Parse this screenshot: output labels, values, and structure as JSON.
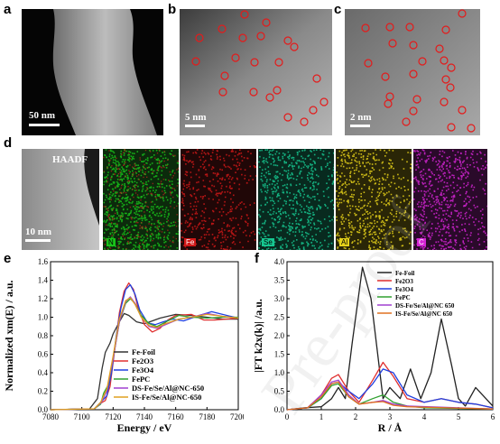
{
  "figure": {
    "panels": {
      "a": {
        "letter": "a",
        "scale": "50 nm"
      },
      "b": {
        "letter": "b",
        "scale": "5 nm"
      },
      "c": {
        "letter": "c",
        "scale": "2 nm"
      },
      "d": {
        "letter": "d",
        "haadf": "HAADF",
        "scale": "10 nm",
        "maps": [
          {
            "label": "N",
            "color": "#19c21a",
            "bg": "#0c2a0c"
          },
          {
            "label": "Fe",
            "color": "#d01818",
            "bg": "#200707"
          },
          {
            "label": "Se",
            "color": "#16c790",
            "bg": "#082a1f"
          },
          {
            "label": "Al",
            "color": "#e6d21a",
            "bg": "#2a2607"
          },
          {
            "label": "C",
            "color": "#d424d4",
            "bg": "#2a0a2a"
          }
        ]
      },
      "e": {
        "letter": "e"
      },
      "f": {
        "letter": "f"
      }
    },
    "watermark": "Pre-proof"
  },
  "chart_data": [
    {
      "type": "line",
      "panel": "e",
      "xlabel": "Energy / eV",
      "ylabel": "Normalized xm(E) / a.u.",
      "xlim": [
        7080,
        7200
      ],
      "ylim": [
        0.0,
        1.6
      ],
      "xticks": [
        7080,
        7100,
        7120,
        7140,
        7160,
        7180,
        7200
      ],
      "yticks": [
        0.0,
        0.2,
        0.4,
        0.6,
        0.8,
        1.0,
        1.2,
        1.4,
        1.6
      ],
      "legend_position": "bottom-right",
      "series": [
        {
          "name": "Fe-Foil",
          "color": "#333333",
          "points": [
            [
              7080,
              0.0
            ],
            [
              7105,
              0.01
            ],
            [
              7110,
              0.12
            ],
            [
              7113,
              0.45
            ],
            [
              7115,
              0.62
            ],
            [
              7118,
              0.72
            ],
            [
              7120,
              0.82
            ],
            [
              7124,
              0.95
            ],
            [
              7127,
              1.04
            ],
            [
              7130,
              1.02
            ],
            [
              7135,
              0.95
            ],
            [
              7140,
              0.93
            ],
            [
              7145,
              0.96
            ],
            [
              7150,
              0.99
            ],
            [
              7160,
              1.03
            ],
            [
              7170,
              1.02
            ],
            [
              7180,
              1.0
            ],
            [
              7190,
              0.98
            ],
            [
              7200,
              0.98
            ]
          ]
        },
        {
          "name": "Fe2O3",
          "color": "#e03030",
          "points": [
            [
              7080,
              0.0
            ],
            [
              7108,
              0.01
            ],
            [
              7112,
              0.07
            ],
            [
              7115,
              0.1
            ],
            [
              7118,
              0.25
            ],
            [
              7121,
              0.65
            ],
            [
              7124,
              1.05
            ],
            [
              7127,
              1.28
            ],
            [
              7130,
              1.37
            ],
            [
              7133,
              1.3
            ],
            [
              7136,
              1.1
            ],
            [
              7140,
              0.92
            ],
            [
              7145,
              0.84
            ],
            [
              7150,
              0.88
            ],
            [
              7155,
              0.97
            ],
            [
              7160,
              1.02
            ],
            [
              7170,
              1.03
            ],
            [
              7178,
              0.97
            ],
            [
              7185,
              0.97
            ],
            [
              7200,
              0.99
            ]
          ]
        },
        {
          "name": "Fe3O4",
          "color": "#2040e0",
          "points": [
            [
              7080,
              0.0
            ],
            [
              7108,
              0.01
            ],
            [
              7112,
              0.08
            ],
            [
              7116,
              0.15
            ],
            [
              7119,
              0.4
            ],
            [
              7122,
              0.8
            ],
            [
              7125,
              1.1
            ],
            [
              7128,
              1.3
            ],
            [
              7131,
              1.35
            ],
            [
              7134,
              1.25
            ],
            [
              7137,
              1.08
            ],
            [
              7142,
              0.94
            ],
            [
              7147,
              0.92
            ],
            [
              7152,
              0.95
            ],
            [
              7158,
              0.98
            ],
            [
              7165,
              0.96
            ],
            [
              7175,
              1.02
            ],
            [
              7183,
              1.06
            ],
            [
              7190,
              1.03
            ],
            [
              7200,
              0.99
            ]
          ]
        },
        {
          "name": "FePC",
          "color": "#30a030",
          "points": [
            [
              7080,
              0.0
            ],
            [
              7108,
              0.01
            ],
            [
              7112,
              0.06
            ],
            [
              7114,
              0.18
            ],
            [
              7117,
              0.27
            ],
            [
              7120,
              0.55
            ],
            [
              7124,
              0.95
            ],
            [
              7128,
              1.15
            ],
            [
              7131,
              1.2
            ],
            [
              7134,
              1.15
            ],
            [
              7138,
              1.02
            ],
            [
              7143,
              0.93
            ],
            [
              7148,
              0.9
            ],
            [
              7155,
              0.96
            ],
            [
              7162,
              1.02
            ],
            [
              7170,
              1.0
            ],
            [
              7180,
              0.99
            ],
            [
              7190,
              1.0
            ],
            [
              7200,
              1.0
            ]
          ]
        },
        {
          "name": "DS-Fe/Se/Al@NC-650",
          "color": "#a040d0",
          "points": [
            [
              7080,
              0.0
            ],
            [
              7108,
              0.01
            ],
            [
              7112,
              0.07
            ],
            [
              7116,
              0.2
            ],
            [
              7120,
              0.55
            ],
            [
              7124,
              0.95
            ],
            [
              7128,
              1.17
            ],
            [
              7131,
              1.22
            ],
            [
              7134,
              1.15
            ],
            [
              7138,
              1.0
            ],
            [
              7143,
              0.9
            ],
            [
              7148,
              0.88
            ],
            [
              7155,
              0.93
            ],
            [
              7162,
              0.98
            ],
            [
              7170,
              1.0
            ],
            [
              7180,
              1.04
            ],
            [
              7190,
              1.01
            ],
            [
              7200,
              0.99
            ]
          ]
        },
        {
          "name": "IS-Fe/Se/Al@NC-650",
          "color": "#e0a020",
          "points": [
            [
              7080,
              0.0
            ],
            [
              7108,
              0.01
            ],
            [
              7112,
              0.08
            ],
            [
              7116,
              0.22
            ],
            [
              7120,
              0.58
            ],
            [
              7124,
              0.98
            ],
            [
              7128,
              1.18
            ],
            [
              7131,
              1.21
            ],
            [
              7134,
              1.14
            ],
            [
              7138,
              1.0
            ],
            [
              7143,
              0.91
            ],
            [
              7148,
              0.89
            ],
            [
              7155,
              0.94
            ],
            [
              7162,
              0.98
            ],
            [
              7170,
              1.0
            ],
            [
              7180,
              1.03
            ],
            [
              7190,
              1.01
            ],
            [
              7200,
              0.99
            ]
          ]
        }
      ]
    },
    {
      "type": "line",
      "panel": "f",
      "xlabel": "R / Å",
      "ylabel": "|FT k2x(k)| /a.u.",
      "xlim": [
        0,
        6
      ],
      "ylim": [
        0.0,
        4.0
      ],
      "xticks": [
        0,
        1,
        2,
        3,
        4,
        5,
        6
      ],
      "yticks": [
        0.0,
        0.5,
        1.0,
        1.5,
        2.0,
        2.5,
        3.0,
        3.5,
        4.0
      ],
      "legend_position": "top-right",
      "series": [
        {
          "name": "Fe-Foil",
          "color": "#222222",
          "points": [
            [
              0,
              0.0
            ],
            [
              0.5,
              0.05
            ],
            [
              1.0,
              0.08
            ],
            [
              1.3,
              0.3
            ],
            [
              1.5,
              0.6
            ],
            [
              1.7,
              0.3
            ],
            [
              1.9,
              1.8
            ],
            [
              2.2,
              3.85
            ],
            [
              2.45,
              3.0
            ],
            [
              2.8,
              0.3
            ],
            [
              3.0,
              0.6
            ],
            [
              3.3,
              0.3
            ],
            [
              3.6,
              1.1
            ],
            [
              3.9,
              0.3
            ],
            [
              4.2,
              1.0
            ],
            [
              4.5,
              2.45
            ],
            [
              4.8,
              1.2
            ],
            [
              5.0,
              0.3
            ],
            [
              5.2,
              0.1
            ],
            [
              5.5,
              0.6
            ],
            [
              5.8,
              0.3
            ],
            [
              6.0,
              0.1
            ]
          ]
        },
        {
          "name": "Fe2O3",
          "color": "#e03030",
          "points": [
            [
              0,
              0.0
            ],
            [
              0.6,
              0.05
            ],
            [
              1.0,
              0.4
            ],
            [
              1.3,
              0.85
            ],
            [
              1.5,
              0.95
            ],
            [
              1.8,
              0.5
            ],
            [
              2.1,
              0.2
            ],
            [
              2.5,
              0.8
            ],
            [
              2.8,
              1.28
            ],
            [
              3.1,
              0.9
            ],
            [
              3.5,
              0.3
            ],
            [
              4.0,
              0.2
            ],
            [
              4.5,
              0.3
            ],
            [
              5.0,
              0.2
            ],
            [
              5.5,
              0.15
            ],
            [
              6.0,
              0.05
            ]
          ]
        },
        {
          "name": "Fe3O4",
          "color": "#2040e0",
          "points": [
            [
              0,
              0.0
            ],
            [
              0.6,
              0.05
            ],
            [
              1.0,
              0.3
            ],
            [
              1.3,
              0.7
            ],
            [
              1.5,
              0.75
            ],
            [
              1.8,
              0.5
            ],
            [
              2.1,
              0.3
            ],
            [
              2.5,
              0.7
            ],
            [
              2.8,
              1.1
            ],
            [
              3.1,
              1.0
            ],
            [
              3.5,
              0.4
            ],
            [
              4.0,
              0.2
            ],
            [
              4.5,
              0.3
            ],
            [
              5.0,
              0.2
            ],
            [
              5.5,
              0.15
            ],
            [
              6.0,
              0.05
            ]
          ]
        },
        {
          "name": "FePC",
          "color": "#30a030",
          "points": [
            [
              0,
              0.0
            ],
            [
              0.6,
              0.05
            ],
            [
              1.0,
              0.3
            ],
            [
              1.3,
              0.65
            ],
            [
              1.5,
              0.7
            ],
            [
              1.8,
              0.35
            ],
            [
              2.1,
              0.15
            ],
            [
              2.5,
              0.3
            ],
            [
              2.8,
              0.4
            ],
            [
              3.1,
              0.2
            ],
            [
              3.5,
              0.1
            ],
            [
              4.0,
              0.05
            ],
            [
              6.0,
              0.02
            ]
          ]
        },
        {
          "name": "DS-Fe/Se/Al@NC 650",
          "color": "#a040d0",
          "points": [
            [
              0,
              0.0
            ],
            [
              0.6,
              0.05
            ],
            [
              1.0,
              0.4
            ],
            [
              1.3,
              0.75
            ],
            [
              1.5,
              0.8
            ],
            [
              1.8,
              0.4
            ],
            [
              2.1,
              0.15
            ],
            [
              2.5,
              0.2
            ],
            [
              2.8,
              0.25
            ],
            [
              3.1,
              0.15
            ],
            [
              3.5,
              0.1
            ],
            [
              6.0,
              0.02
            ]
          ]
        },
        {
          "name": "IS-Fe/Se/Al@NC 650",
          "color": "#e07020",
          "points": [
            [
              0,
              0.0
            ],
            [
              0.6,
              0.05
            ],
            [
              1.0,
              0.35
            ],
            [
              1.3,
              0.7
            ],
            [
              1.5,
              0.75
            ],
            [
              1.8,
              0.35
            ],
            [
              2.1,
              0.15
            ],
            [
              2.5,
              0.2
            ],
            [
              2.8,
              0.22
            ],
            [
              3.1,
              0.12
            ],
            [
              3.5,
              0.08
            ],
            [
              6.0,
              0.02
            ]
          ]
        }
      ]
    }
  ]
}
